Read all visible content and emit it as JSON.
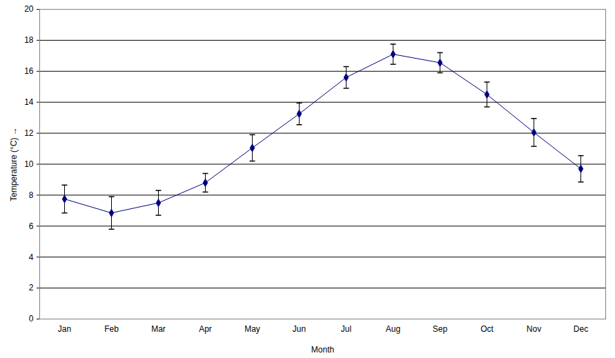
{
  "chart_data": {
    "type": "line",
    "x_label": "Month",
    "y_label": "Temperature (°C)",
    "categories": [
      "Jan",
      "Feb",
      "Mar",
      "Apr",
      "May",
      "Jun",
      "Jul",
      "Aug",
      "Sep",
      "Oct",
      "Nov",
      "Dec"
    ],
    "values": [
      7.75,
      6.85,
      7.5,
      8.8,
      11.05,
      13.25,
      15.6,
      17.1,
      16.55,
      14.5,
      12.05,
      9.7
    ],
    "errors": [
      0.9,
      1.05,
      0.8,
      0.6,
      0.85,
      0.7,
      0.7,
      0.65,
      0.65,
      0.8,
      0.9,
      0.85
    ],
    "color": "#000080",
    "marker": "diamond",
    "ylim": [
      0,
      20
    ],
    "yticks": [
      0,
      2,
      4,
      6,
      8,
      10,
      12,
      14,
      16,
      18,
      20
    ],
    "grid": true
  }
}
